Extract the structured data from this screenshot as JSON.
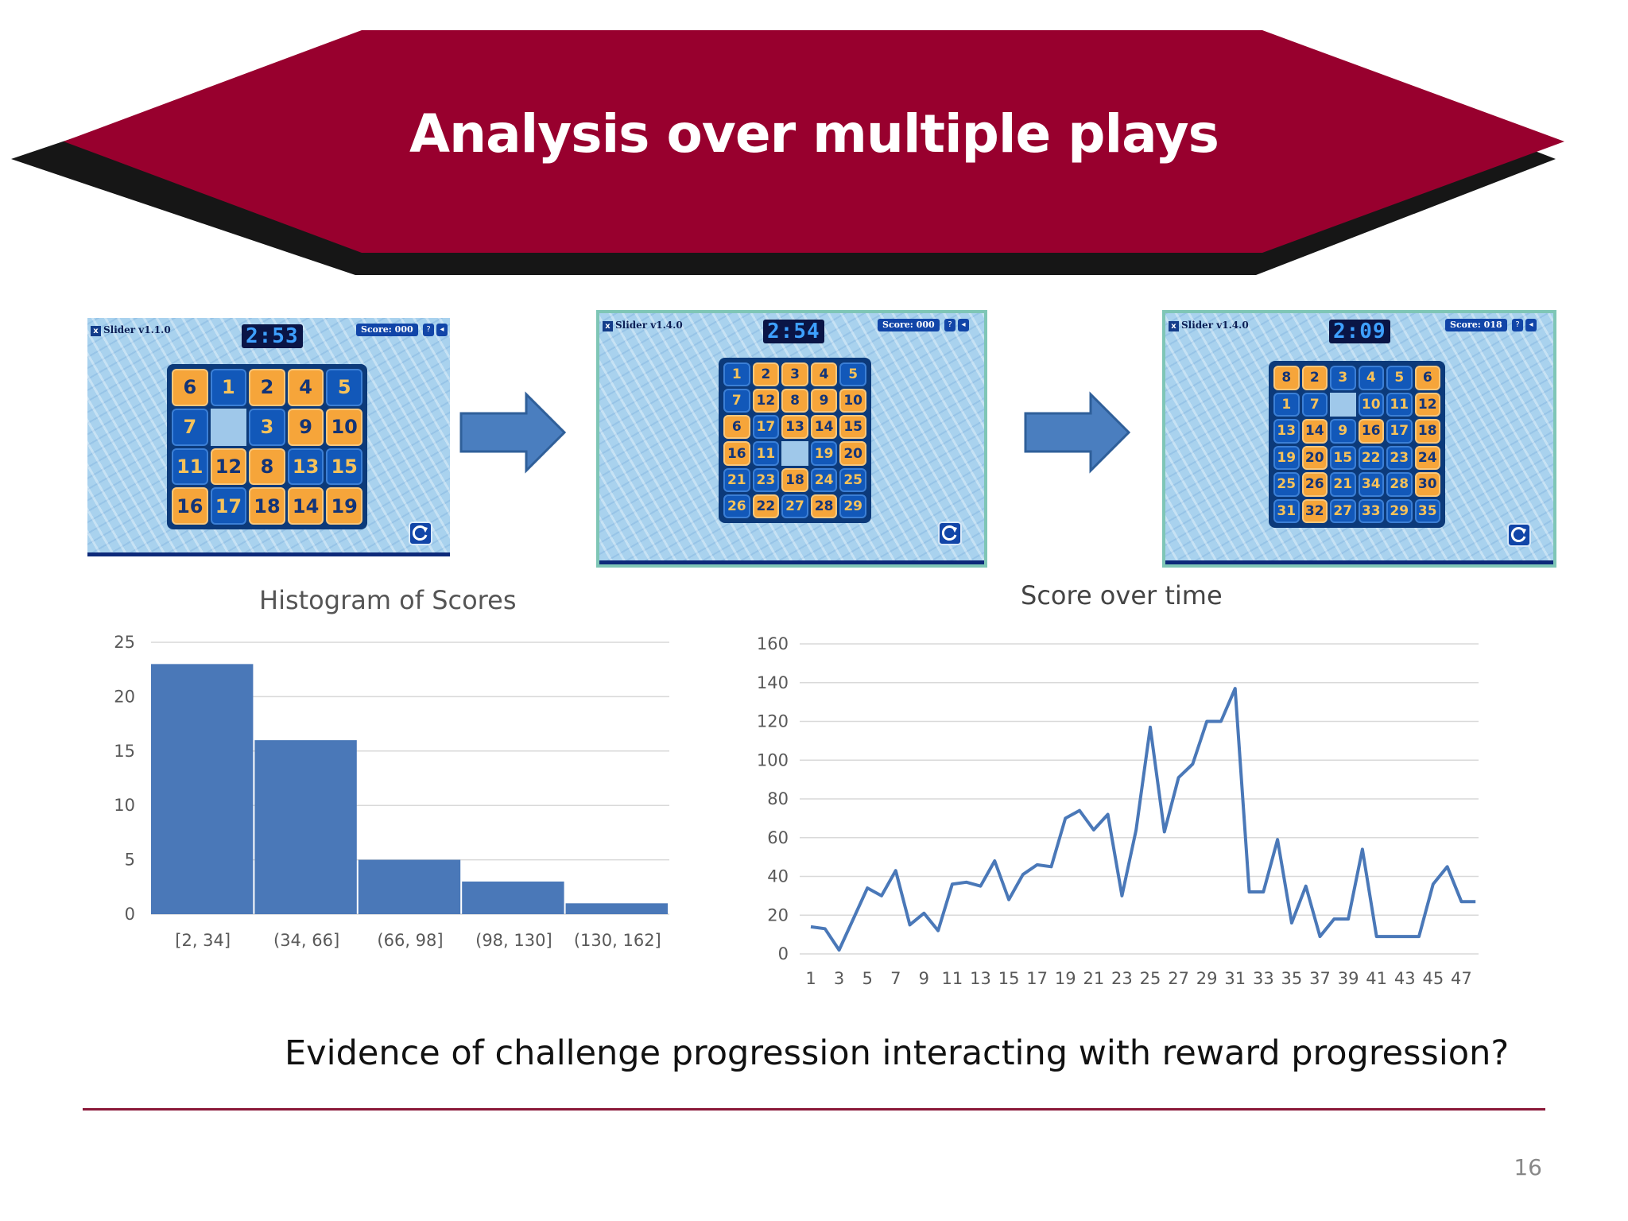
{
  "slide": {
    "title": "Analysis over multiple plays",
    "caption": "Evidence of challenge progression interacting with reward progression?",
    "page_number": "16",
    "colors": {
      "banner": "#98002e",
      "shadow": "#0a0a0a",
      "tile_orange": "#f6a53a",
      "tile_blue": "#1258b9",
      "game_bg": "#a9d2ee",
      "chart_blue": "#4a78b8"
    }
  },
  "games": [
    {
      "title": "Slider v1.1.0",
      "x_label": "x",
      "timer": "2:53",
      "score": "Score: 000",
      "help": "?",
      "sound_icon": "speaker-icon",
      "reset_icon": "reset-icon",
      "rows": [
        [
          [
            "6",
            "o"
          ],
          [
            "1",
            "b"
          ],
          [
            "2",
            "o"
          ],
          [
            "4",
            "o"
          ],
          [
            "5",
            "b"
          ]
        ],
        [
          [
            "7",
            "b"
          ],
          [
            "",
            ""
          ],
          [
            "3",
            "b"
          ],
          [
            "9",
            "o"
          ],
          [
            "10",
            "o"
          ]
        ],
        [
          [
            "11",
            "b"
          ],
          [
            "12",
            "o"
          ],
          [
            "8",
            "o"
          ],
          [
            "13",
            "b"
          ],
          [
            "15",
            "b"
          ]
        ],
        [
          [
            "16",
            "o"
          ],
          [
            "17",
            "b"
          ],
          [
            "18",
            "o"
          ],
          [
            "14",
            "o"
          ],
          [
            "19",
            "o"
          ]
        ]
      ]
    },
    {
      "title": "Slider v1.4.0",
      "x_label": "x",
      "timer": "2:54",
      "score": "Score: 000",
      "help": "?",
      "sound_icon": "speaker-icon",
      "reset_icon": "reset-icon",
      "rows": [
        [
          [
            "1",
            "b"
          ],
          [
            "2",
            "o"
          ],
          [
            "3",
            "o"
          ],
          [
            "4",
            "o"
          ],
          [
            "5",
            "b"
          ]
        ],
        [
          [
            "7",
            "b"
          ],
          [
            "12",
            "o"
          ],
          [
            "8",
            "o"
          ],
          [
            "9",
            "o"
          ],
          [
            "10",
            "o"
          ]
        ],
        [
          [
            "6",
            "o"
          ],
          [
            "17",
            "b"
          ],
          [
            "13",
            "o"
          ],
          [
            "14",
            "o"
          ],
          [
            "15",
            "o"
          ]
        ],
        [
          [
            "16",
            "o"
          ],
          [
            "11",
            "b"
          ],
          [
            "",
            ""
          ],
          [
            "19",
            "b"
          ],
          [
            "20",
            "o"
          ]
        ],
        [
          [
            "21",
            "b"
          ],
          [
            "23",
            "b"
          ],
          [
            "18",
            "o"
          ],
          [
            "24",
            "b"
          ],
          [
            "25",
            "b"
          ]
        ],
        [
          [
            "26",
            "b"
          ],
          [
            "22",
            "o"
          ],
          [
            "27",
            "b"
          ],
          [
            "28",
            "o"
          ],
          [
            "29",
            "b"
          ]
        ]
      ]
    },
    {
      "title": "Slider v1.4.0",
      "x_label": "x",
      "timer": "2:09",
      "score": "Score: 018",
      "help": "?",
      "sound_icon": "speaker-icon",
      "reset_icon": "reset-icon",
      "rows": [
        [
          [
            "8",
            "o"
          ],
          [
            "2",
            "o"
          ],
          [
            "3",
            "b"
          ],
          [
            "4",
            "b"
          ],
          [
            "5",
            "b"
          ],
          [
            "6",
            "o"
          ]
        ],
        [
          [
            "1",
            "b"
          ],
          [
            "7",
            "b"
          ],
          [
            "",
            ""
          ],
          [
            "10",
            "b"
          ],
          [
            "11",
            "b"
          ],
          [
            "12",
            "o"
          ]
        ],
        [
          [
            "13",
            "b"
          ],
          [
            "14",
            "o"
          ],
          [
            "9",
            "b"
          ],
          [
            "16",
            "o"
          ],
          [
            "17",
            "b"
          ],
          [
            "18",
            "o"
          ]
        ],
        [
          [
            "19",
            "b"
          ],
          [
            "20",
            "o"
          ],
          [
            "15",
            "b"
          ],
          [
            "22",
            "b"
          ],
          [
            "23",
            "b"
          ],
          [
            "24",
            "o"
          ]
        ],
        [
          [
            "25",
            "b"
          ],
          [
            "26",
            "o"
          ],
          [
            "21",
            "b"
          ],
          [
            "34",
            "b"
          ],
          [
            "28",
            "b"
          ],
          [
            "30",
            "o"
          ]
        ],
        [
          [
            "31",
            "b"
          ],
          [
            "32",
            "o"
          ],
          [
            "27",
            "b"
          ],
          [
            "33",
            "b"
          ],
          [
            "29",
            "b"
          ],
          [
            "35",
            "b"
          ]
        ]
      ]
    }
  ],
  "chart_data": [
    {
      "type": "bar",
      "title": "Histogram of Scores",
      "categories": [
        "[2, 34]",
        "(34, 66]",
        "(66, 98]",
        "(98, 130]",
        "(130, 162]"
      ],
      "values": [
        23,
        16,
        5,
        3,
        1
      ],
      "ylim": [
        0,
        25
      ],
      "yticks": [
        "0",
        "5",
        "10",
        "15",
        "20",
        "25"
      ],
      "grid": true,
      "color": "#4a78b8"
    },
    {
      "type": "line",
      "title": "Score over time",
      "x": [
        1,
        2,
        3,
        4,
        5,
        6,
        7,
        8,
        9,
        10,
        11,
        12,
        13,
        14,
        15,
        16,
        17,
        18,
        19,
        20,
        21,
        22,
        23,
        24,
        25,
        26,
        27,
        28,
        29,
        30,
        31,
        32,
        33,
        34,
        35,
        36,
        37,
        38,
        39,
        40,
        41,
        42,
        43,
        44,
        45,
        46,
        47,
        48
      ],
      "values": [
        14,
        13,
        2,
        18,
        34,
        30,
        43,
        15,
        21,
        12,
        36,
        37,
        35,
        48,
        28,
        41,
        46,
        45,
        70,
        74,
        64,
        72,
        30,
        64,
        117,
        63,
        91,
        98,
        120,
        120,
        137,
        32,
        32,
        59,
        16,
        35,
        9,
        18,
        18,
        54,
        9,
        9,
        9,
        9,
        36,
        45,
        27,
        27
      ],
      "xtick_labels": [
        "1",
        "3",
        "5",
        "7",
        "9",
        "11",
        "13",
        "15",
        "17",
        "19",
        "21",
        "23",
        "25",
        "27",
        "29",
        "31",
        "33",
        "35",
        "37",
        "39",
        "41",
        "43",
        "45",
        "47"
      ],
      "ylim": [
        0,
        160
      ],
      "yticks": [
        "0",
        "20",
        "40",
        "60",
        "80",
        "100",
        "120",
        "140",
        "160"
      ],
      "grid": true,
      "color": "#4a78b8"
    }
  ]
}
